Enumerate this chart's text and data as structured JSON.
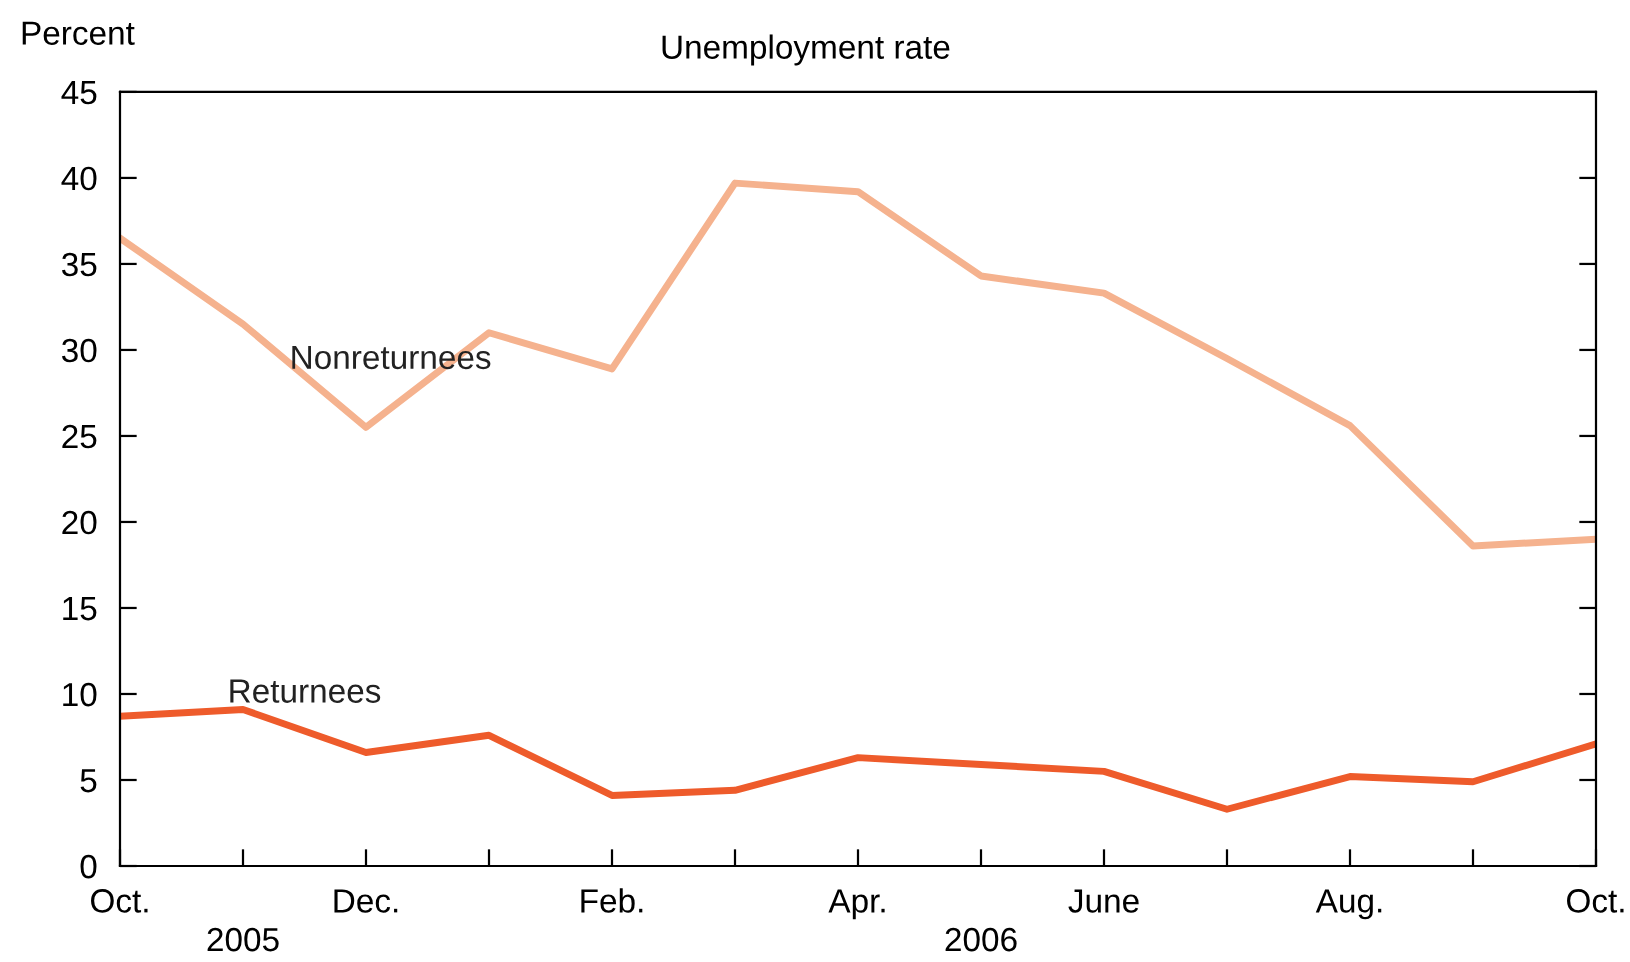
{
  "chart_data": {
    "type": "line",
    "title": "Unemployment rate",
    "ylabel": "Percent",
    "categories": [
      "Oct.",
      "2005",
      "Dec.",
      null,
      "Feb.",
      null,
      "Apr.",
      "2006",
      "June",
      null,
      "Aug.",
      null,
      "Oct."
    ],
    "series": [
      {
        "name": "Nonreturnees",
        "color": "#f5b28e",
        "values": [
          36.5,
          31.5,
          25.5,
          31.0,
          28.9,
          39.7,
          39.2,
          34.3,
          33.3,
          29.5,
          25.6,
          18.6,
          19.0
        ]
      },
      {
        "name": "Returnees",
        "color": "#ee5b2b",
        "values": [
          8.7,
          9.1,
          6.6,
          7.6,
          4.1,
          4.4,
          6.3,
          5.9,
          5.5,
          3.3,
          5.2,
          4.9,
          7.1
        ]
      }
    ],
    "ylim": [
      0,
      45
    ],
    "yticks": [
      0,
      5,
      10,
      15,
      20,
      25,
      30,
      35,
      40,
      45
    ],
    "grid": false,
    "legend": false,
    "marker": "none",
    "line_style": "solid"
  }
}
